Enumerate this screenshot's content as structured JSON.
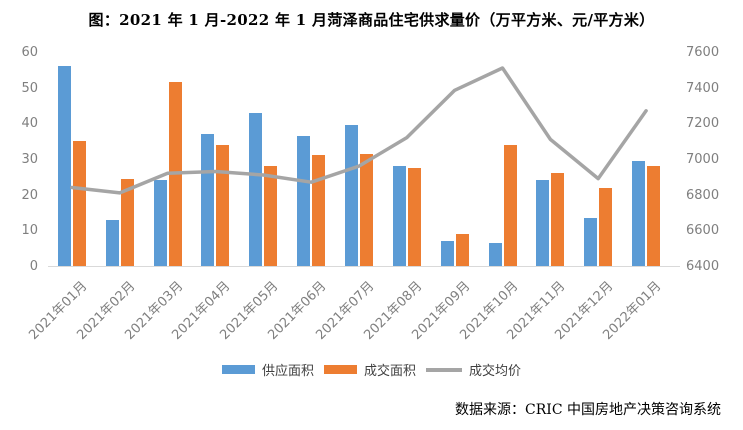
{
  "title": "图：2021 年 1 月-2022 年 1 月菏泽商品住宅供求量价（万平方米、元/平方米）",
  "source": "数据来源：CRIC 中国房地产决策咨询系统",
  "colors": {
    "supply_bar": "#5B9BD5",
    "transaction_bar": "#ED7D31",
    "price_line": "#A5A5A5",
    "axis_text": "#7F7F7F",
    "axis_line": "#D9D9D9"
  },
  "chart_data": {
    "type": "bar",
    "subtype": "grouped bars with secondary-axis line",
    "categories": [
      "2021年01月",
      "2021年02月",
      "2021年03月",
      "2021年04月",
      "2021年05月",
      "2021年06月",
      "2021年07月",
      "2021年08月",
      "2021年09月",
      "2021年10月",
      "2021年11月",
      "2021年12月",
      "2022年01月"
    ],
    "series": [
      {
        "name": "供应面积",
        "type": "bar",
        "axis": "left",
        "color": "#5B9BD5",
        "values": [
          56,
          13,
          24,
          37,
          43,
          36.5,
          39.5,
          28,
          7,
          6.5,
          24,
          13.5,
          29.5
        ]
      },
      {
        "name": "成交面积",
        "type": "bar",
        "axis": "left",
        "color": "#ED7D31",
        "values": [
          35,
          24.5,
          51.5,
          34,
          28,
          31,
          31.5,
          27.5,
          9,
          34,
          26,
          22,
          28
        ]
      },
      {
        "name": "成交均价",
        "type": "line",
        "axis": "right",
        "color": "#A5A5A5",
        "values": [
          6840,
          6810,
          6920,
          6930,
          6910,
          6870,
          6960,
          7120,
          7385,
          7510,
          7110,
          6890,
          7270
        ]
      }
    ],
    "left_axis": {
      "min": 0,
      "max": 60,
      "step": 10,
      "ticks": [
        0,
        10,
        20,
        30,
        40,
        50,
        60
      ]
    },
    "right_axis": {
      "min": 6400,
      "max": 7600,
      "step": 200,
      "ticks": [
        6400,
        6600,
        6800,
        7000,
        7200,
        7400,
        7600
      ]
    },
    "legend": {
      "position": "bottom",
      "entries": [
        "供应面积",
        "成交面积",
        "成交均价"
      ]
    },
    "grid": false
  }
}
